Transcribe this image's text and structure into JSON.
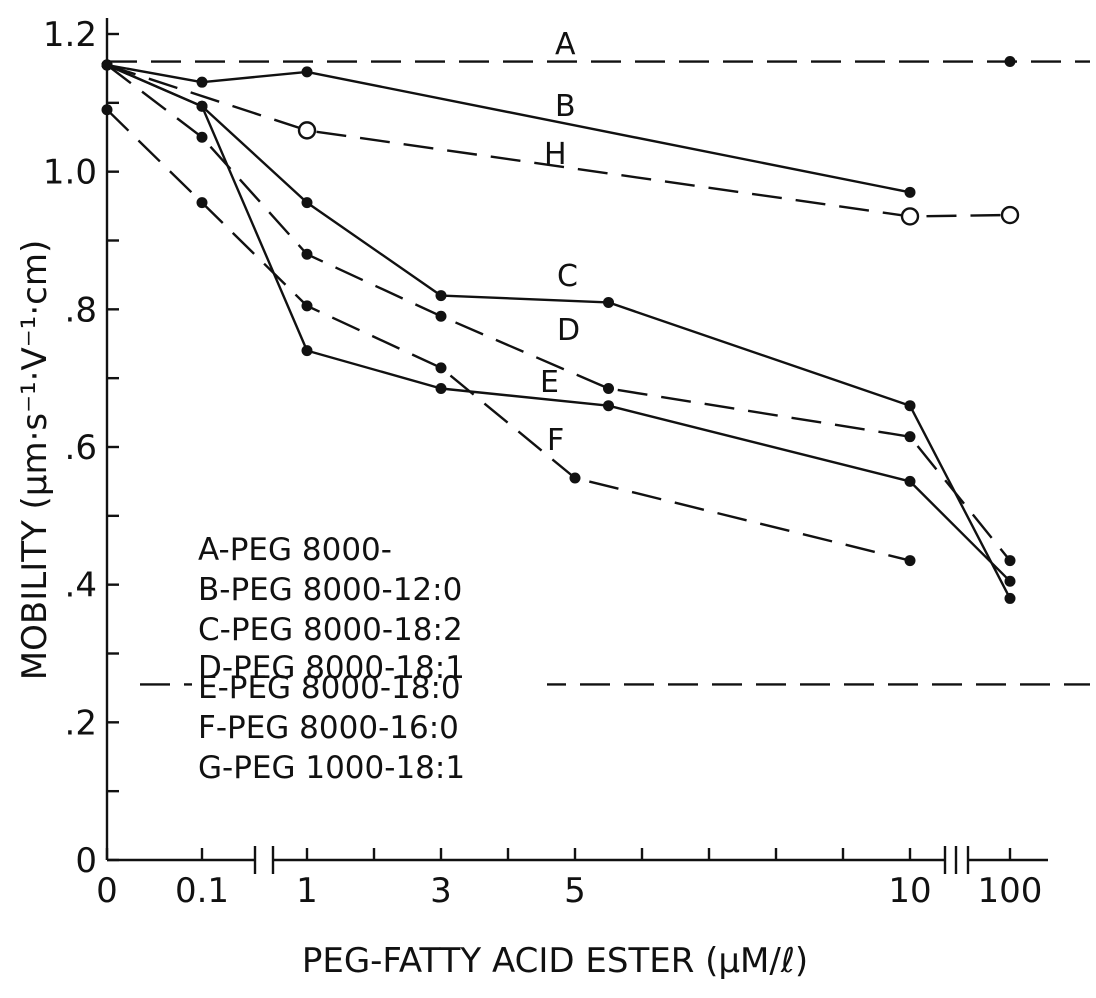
{
  "chart_data": {
    "type": "line",
    "title": "",
    "xlabel": "PEG-FATTY ACID ESTER (μM/ℓ)",
    "ylabel": "MOBILITY (μm·s⁻¹·V⁻¹·cm)",
    "ylim": [
      0,
      1.2
    ],
    "x_scale": "broken",
    "x_tick_labels": [
      "0",
      "0.1",
      "1",
      "3",
      "5",
      "10",
      "100"
    ],
    "y_tick_labels": [
      "0",
      ".2",
      ".4",
      ".6",
      ".8",
      "1.0",
      "1.2"
    ],
    "grid": false,
    "legend_placement": "lower-left",
    "legend": [
      "A-PEG 8000-",
      "B-PEG 8000-12:0",
      "C-PEG 8000-18:2",
      "D-PEG 8000-18:1",
      "E-PEG 8000-18:0",
      "F-PEG 8000-16:0",
      "G-PEG 1000-18:1"
    ],
    "series": [
      {
        "name": "A",
        "style": "dashed",
        "marker": "none",
        "points": [
          [
            0,
            1.16
          ],
          [
            100,
            1.16
          ]
        ]
      },
      {
        "name": "B",
        "style": "solid",
        "marker": "dot",
        "points": [
          [
            0,
            1.155
          ],
          [
            0.1,
            1.13
          ],
          [
            1,
            1.145
          ],
          [
            10,
            0.97
          ]
        ]
      },
      {
        "name": "H",
        "style": "dashed",
        "marker": "open-circle",
        "points": [
          [
            0,
            1.155
          ],
          [
            1,
            1.06
          ],
          [
            10,
            0.935
          ],
          [
            100,
            0.937
          ]
        ]
      },
      {
        "name": "C",
        "style": "solid",
        "marker": "dot",
        "points": [
          [
            0,
            1.155
          ],
          [
            0.1,
            1.095
          ],
          [
            1,
            0.955
          ],
          [
            3,
            0.82
          ],
          [
            5.5,
            0.81
          ],
          [
            10,
            0.66
          ],
          [
            100,
            0.38
          ]
        ]
      },
      {
        "name": "D",
        "style": "dashed",
        "marker": "dot",
        "points": [
          [
            0,
            1.155
          ],
          [
            0.1,
            1.05
          ],
          [
            1,
            0.88
          ],
          [
            3,
            0.79
          ],
          [
            5.5,
            0.685
          ],
          [
            10,
            0.615
          ],
          [
            100,
            0.435
          ]
        ]
      },
      {
        "name": "E",
        "style": "solid",
        "marker": "dot",
        "points": [
          [
            0,
            1.155
          ],
          [
            0.1,
            1.095
          ],
          [
            1,
            0.74
          ],
          [
            3,
            0.685
          ],
          [
            5.5,
            0.66
          ],
          [
            10,
            0.55
          ],
          [
            100,
            0.405
          ]
        ]
      },
      {
        "name": "F",
        "style": "dashed",
        "marker": "dot",
        "points": [
          [
            0,
            1.09
          ],
          [
            0.1,
            0.955
          ],
          [
            1,
            0.805
          ],
          [
            3,
            0.715
          ],
          [
            5,
            0.555
          ],
          [
            10,
            0.435
          ]
        ]
      },
      {
        "name": "",
        "style": "dashed",
        "marker": "none",
        "points": [
          [
            0,
            0.255
          ],
          [
            100,
            0.255
          ]
        ]
      }
    ]
  }
}
